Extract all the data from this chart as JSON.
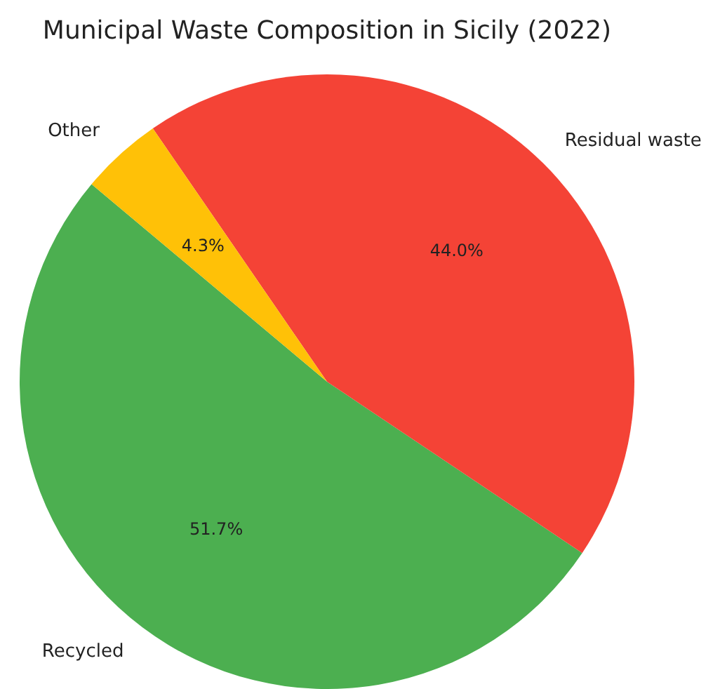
{
  "chart_data": {
    "type": "pie",
    "title": "Municipal Waste Composition in Sicily (2022)",
    "categories": [
      "Recycled",
      "Residual waste",
      "Other"
    ],
    "values": [
      51.7,
      44.0,
      4.3
    ],
    "value_labels": [
      "51.7%",
      "44.0%",
      "4.3%"
    ],
    "colors": [
      "#4caf50",
      "#f44336",
      "#ffc107"
    ]
  }
}
